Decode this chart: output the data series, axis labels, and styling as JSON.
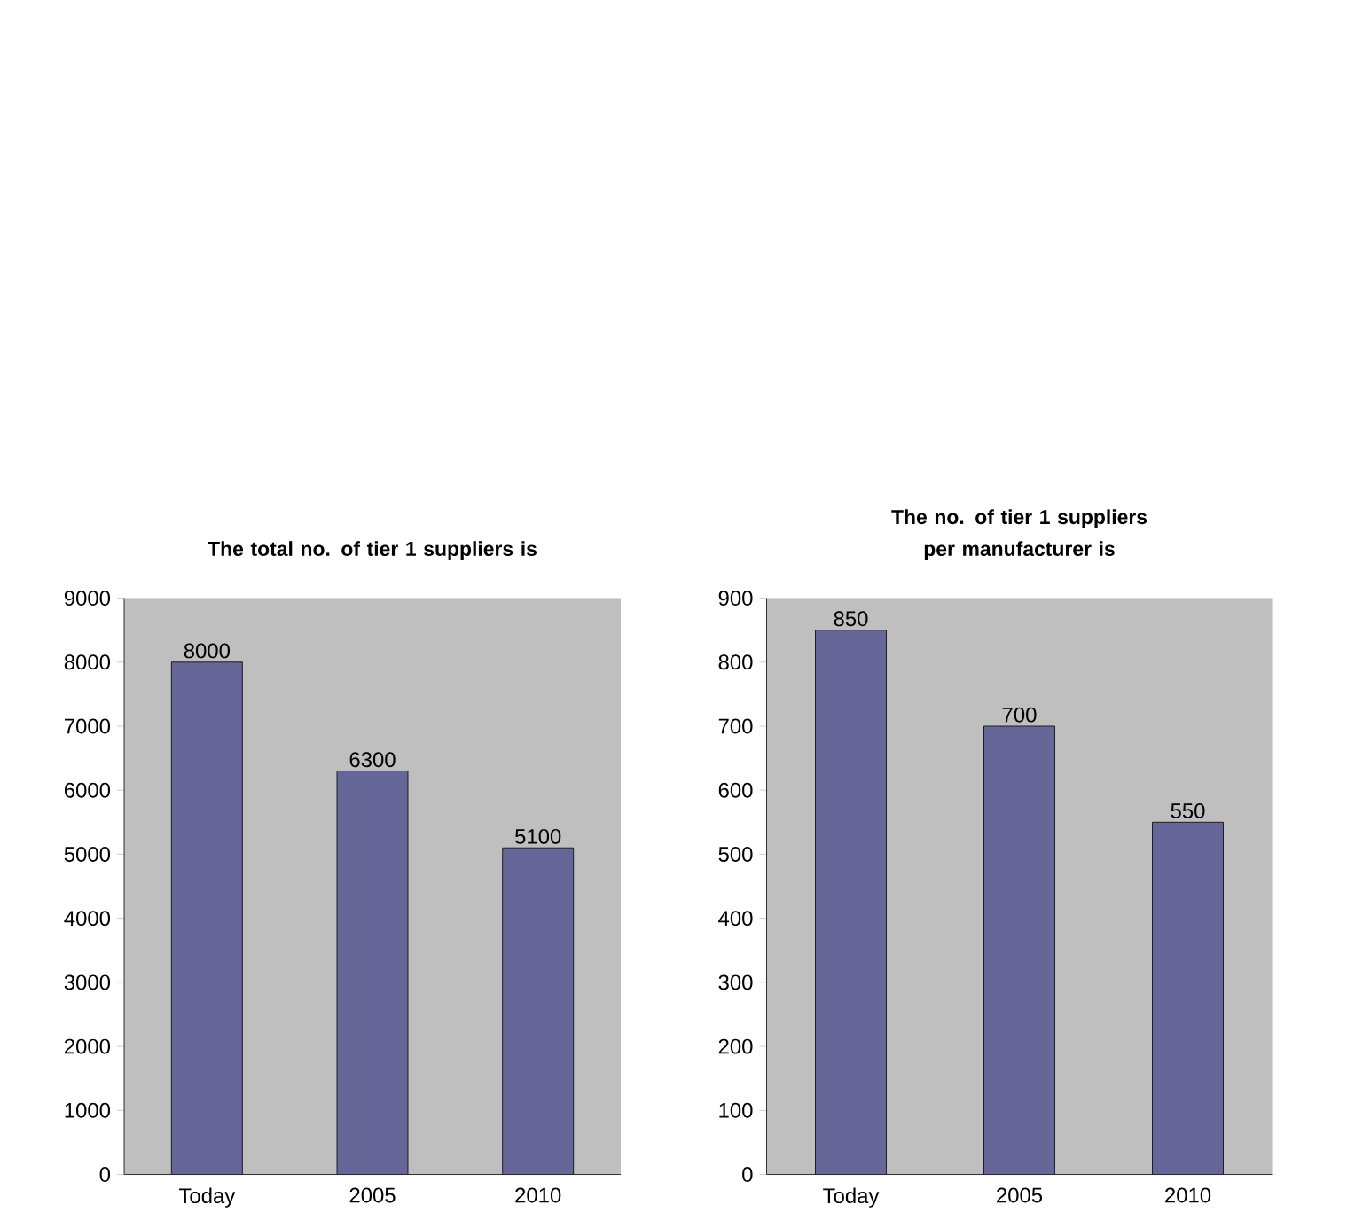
{
  "chart_data": [
    {
      "type": "bar",
      "title": "The total no. of tier 1 suppliers is",
      "categories": [
        "Today",
        "2005",
        "2010"
      ],
      "values": [
        8000,
        6300,
        5100
      ],
      "color": "#666699",
      "ylim": [
        0,
        9000
      ],
      "yticks": [
        0,
        1000,
        2000,
        3000,
        4000,
        5000,
        6000,
        7000,
        8000,
        9000
      ],
      "data_labels": true
    },
    {
      "type": "bar",
      "title": "The no. of tier 1 suppliers per manufacturer is",
      "categories": [
        "Today",
        "2005",
        "2010"
      ],
      "values": [
        850,
        700,
        550
      ],
      "color": "#666699",
      "ylim": [
        0,
        900
      ],
      "yticks": [
        0,
        100,
        200,
        300,
        400,
        500,
        600,
        700,
        800,
        900
      ],
      "data_labels": true
    }
  ]
}
